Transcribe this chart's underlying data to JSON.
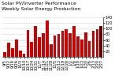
{
  "title_line1": "Weekly Solar Energy Production",
  "title_line2": "Solar PV/Inverter Performance",
  "bar_color": "#cc0000",
  "dark_bar_color": "#660000",
  "background_color": "#ffffff",
  "grid_color": "#999999",
  "ylim": [
    0,
    140
  ],
  "yticks": [
    20,
    40,
    60,
    80,
    100,
    120,
    140
  ],
  "xlabels": [
    "9/5",
    "9/12",
    "9/19",
    "9/26",
    "10/3",
    "10/10",
    "10/17",
    "10/24",
    "10/31",
    "11/7",
    "11/14",
    "11/21",
    "11/28",
    "12/5",
    "12/12",
    "12/19",
    "12/26",
    "1/2",
    "1/9",
    "1/16",
    "1/23",
    "1/30",
    "2/6",
    "2/13",
    "2/20",
    "2/27"
  ],
  "values": [
    18,
    50,
    30,
    62,
    22,
    10,
    95,
    52,
    108,
    70,
    85,
    128,
    45,
    75,
    82,
    92,
    98,
    85,
    108,
    72,
    62,
    88,
    55,
    92,
    98,
    108
  ],
  "highlight_last": true,
  "title_fontsize": 4.5,
  "tick_fontsize": 3.5
}
